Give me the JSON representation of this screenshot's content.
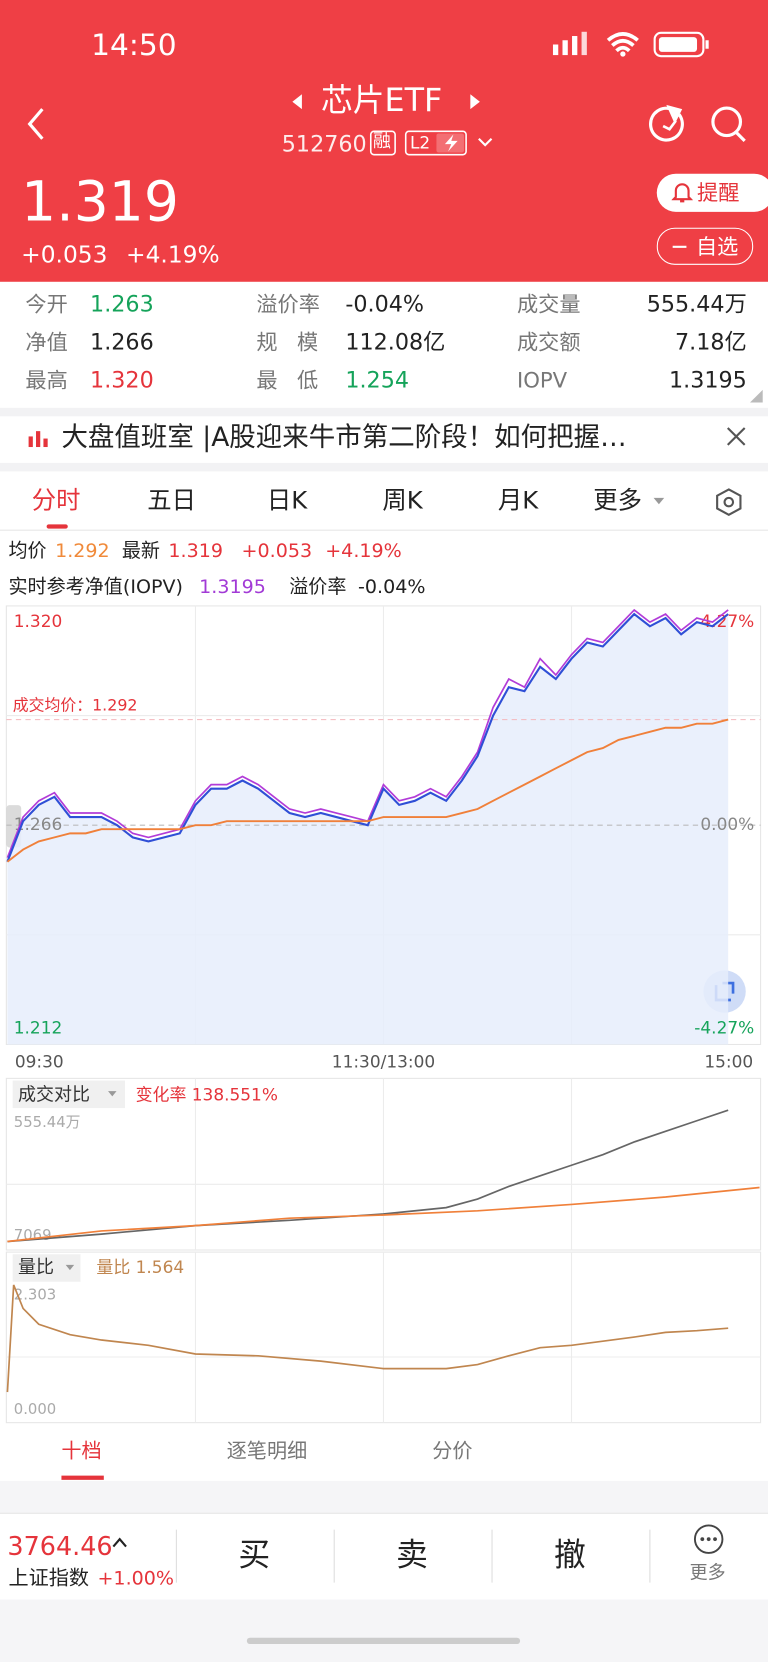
{
  "status_bar": {
    "time": "14:50"
  },
  "header": {
    "title": "芯片ETF",
    "code": "512760",
    "badge_margin": "融",
    "badge_level": "L2",
    "price": "1.319",
    "change": "+0.053",
    "change_pct": "+4.19%",
    "alert_button": "提醒",
    "watch_button": "自选"
  },
  "stats": [
    [
      {
        "label": "今开",
        "value": "1.263"
      },
      {
        "label": "溢价率",
        "value": "-0.04%"
      },
      {
        "label": "成交量",
        "value": "555.44万"
      }
    ],
    [
      {
        "label": "净值",
        "value": "1.266"
      },
      {
        "label": "规 模",
        "value": "112.08亿"
      },
      {
        "label": "成交额",
        "value": "7.18亿"
      }
    ],
    [
      {
        "label": "最高",
        "value": "1.320"
      },
      {
        "label": "最 低",
        "value": "1.254"
      },
      {
        "label": "IOPV",
        "value": "1.3195"
      }
    ]
  ],
  "banner": {
    "text": "大盘值班室 |A股迎来牛市第二阶段！如何把握…"
  },
  "tabs": [
    "分时",
    "五日",
    "日K",
    "周K",
    "月K",
    "更多"
  ],
  "quote_line": {
    "avg_label": "均价",
    "avg": "1.292",
    "last_label": "最新",
    "last": "1.319",
    "change": "+0.053",
    "change_pct": "+4.19%"
  },
  "iopv_line": {
    "label": "实时参考净值(IOPV)",
    "value": "1.3195",
    "premium_label": "溢价率",
    "premium": "-0.04%"
  },
  "intraday": {
    "xlim": [
      0,
      240
    ],
    "ylim": [
      1.212,
      1.32
    ],
    "y2lim": [
      -4.27,
      4.27
    ],
    "yticks": [
      {
        "value": 1.32,
        "label": "1.320"
      },
      {
        "value": 1.266,
        "label": "1.266"
      },
      {
        "value": 1.212,
        "label": "1.212"
      }
    ],
    "y2ticks": [
      {
        "value": 4.27,
        "label": "4.27%"
      },
      {
        "value": 0,
        "label": "0.00%"
      },
      {
        "value": -4.27,
        "label": "-4.27%"
      }
    ],
    "xticks": [
      {
        "value": 0,
        "label": "09:30"
      },
      {
        "value": 120,
        "label": "11:30/13:00"
      },
      {
        "value": 240,
        "label": "15:00"
      }
    ],
    "avg_ref": {
      "value": 1.292,
      "label": "成交均价：1.292"
    },
    "minutes": [
      0,
      5,
      10,
      15,
      20,
      25,
      30,
      35,
      40,
      45,
      50,
      55,
      60,
      65,
      70,
      75,
      80,
      85,
      90,
      95,
      100,
      105,
      110,
      115,
      120,
      125,
      130,
      135,
      140,
      145,
      150,
      155,
      160,
      165,
      170,
      175,
      180,
      185,
      190,
      195,
      200,
      205,
      210,
      215,
      220,
      225,
      230
    ],
    "price": [
      1.257,
      1.267,
      1.271,
      1.273,
      1.268,
      1.268,
      1.268,
      1.266,
      1.263,
      1.262,
      1.263,
      1.264,
      1.271,
      1.275,
      1.275,
      1.277,
      1.275,
      1.272,
      1.269,
      1.268,
      1.269,
      1.268,
      1.267,
      1.266,
      1.275,
      1.271,
      1.272,
      1.274,
      1.272,
      1.277,
      1.283,
      1.293,
      1.3,
      1.299,
      1.305,
      1.302,
      1.307,
      1.311,
      1.31,
      1.314,
      1.318,
      1.315,
      1.317,
      1.313,
      1.316,
      1.315,
      1.318
    ],
    "iopv": [
      1.258,
      1.268,
      1.272,
      1.274,
      1.269,
      1.269,
      1.269,
      1.267,
      1.264,
      1.263,
      1.264,
      1.265,
      1.272,
      1.276,
      1.276,
      1.278,
      1.276,
      1.273,
      1.27,
      1.269,
      1.27,
      1.269,
      1.268,
      1.267,
      1.276,
      1.272,
      1.273,
      1.275,
      1.273,
      1.278,
      1.284,
      1.295,
      1.302,
      1.3,
      1.307,
      1.303,
      1.308,
      1.312,
      1.311,
      1.315,
      1.319,
      1.316,
      1.318,
      1.314,
      1.317,
      1.316,
      1.319
    ],
    "avg": [
      1.257,
      1.26,
      1.262,
      1.263,
      1.264,
      1.264,
      1.265,
      1.265,
      1.265,
      1.265,
      1.265,
      1.265,
      1.266,
      1.266,
      1.267,
      1.267,
      1.267,
      1.267,
      1.267,
      1.267,
      1.267,
      1.267,
      1.267,
      1.267,
      1.268,
      1.268,
      1.268,
      1.268,
      1.268,
      1.269,
      1.27,
      1.272,
      1.274,
      1.276,
      1.278,
      1.28,
      1.282,
      1.284,
      1.285,
      1.287,
      1.288,
      1.289,
      1.29,
      1.29,
      1.291,
      1.291,
      1.292
    ]
  },
  "volume": {
    "title": "成交对比",
    "rate_label": "变化率 138.551%",
    "xlim": [
      0,
      240
    ],
    "ylim": [
      7069,
      5554400
    ],
    "yticks": [
      {
        "value": 5554400,
        "label": "555.44万"
      },
      7069
    ],
    "today": {
      "minutes": [
        0,
        30,
        60,
        90,
        120,
        140,
        150,
        160,
        170,
        180,
        190,
        200,
        210,
        220,
        230
      ],
      "values": [
        7069,
        318000,
        678000,
        902000,
        1170000,
        1439000,
        1799000,
        2334000,
        2781000,
        3230000,
        3676000,
        4212000,
        4659000,
        5106000,
        5554400
      ]
    },
    "previous": {
      "minutes": [
        0,
        30,
        60,
        90,
        120,
        150,
        180,
        210,
        240
      ],
      "values": [
        7069,
        456000,
        678000,
        990000,
        1127000,
        1305000,
        1573000,
        1885000,
        2288000
      ]
    }
  },
  "ratio": {
    "title": "量比",
    "value_label": "量比 1.564",
    "xlim": [
      0,
      240
    ],
    "ylim": [
      0,
      2.303
    ],
    "yticks": [
      2.303,
      {
        "value": 0,
        "label": "0.000"
      }
    ],
    "minutes": [
      0,
      2,
      5,
      10,
      20,
      30,
      45,
      60,
      80,
      100,
      120,
      140,
      150,
      160,
      170,
      180,
      190,
      200,
      210,
      220,
      230
    ],
    "values": [
      0.47,
      2.303,
      1.9,
      1.63,
      1.45,
      1.36,
      1.27,
      1.12,
      1.09,
      1.0,
      0.87,
      0.87,
      0.94,
      1.09,
      1.23,
      1.27,
      1.34,
      1.41,
      1.49,
      1.52,
      1.564
    ]
  },
  "bottom_tabs": [
    "十档",
    "逐笔明细",
    "分价"
  ],
  "footer": {
    "index_value": "3764.46",
    "index_name": "上证指数",
    "index_change": "+1.00%",
    "buy": "买",
    "sell": "卖",
    "cancel": "撤",
    "more": "更多"
  }
}
